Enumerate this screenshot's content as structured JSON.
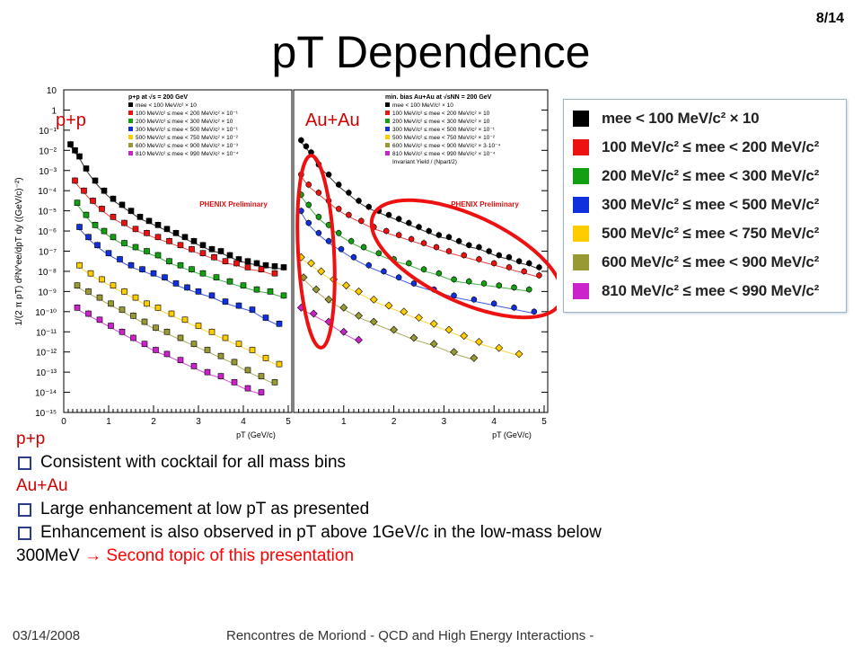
{
  "slide": {
    "number": "8/14",
    "title": "pT Dependence",
    "footer_date": "03/14/2008",
    "footer_text": "Rencontres de Moriond - QCD and High Energy Interactions -"
  },
  "panel_tags": {
    "pp": "p+p",
    "auau": "Au+Au"
  },
  "notes": {
    "pp_head": "p+p",
    "pp_bullet": "Consistent with cocktail for all mass bins",
    "auau_head": "Au+Au",
    "auau_bullet1": "Large enhancement at low pT as presented",
    "auau_bullet2": "Enhancement is also observed in pT above 1GeV/c in the low-mass below",
    "auau_bullet2_cont": "300MeV",
    "arrow": "→",
    "auau_bullet2_red": "Second topic of this presentation"
  },
  "legend": [
    {
      "label": "mee < 100 MeV/c² × 10",
      "color": "#000000"
    },
    {
      "label": "100 MeV/c² ≤ mee < 200 MeV/c²",
      "color": "#ee1111"
    },
    {
      "label": "200 MeV/c² ≤ mee < 300 MeV/c²",
      "color": "#12a012"
    },
    {
      "label": "300 MeV/c² ≤ mee < 500 MeV/c²",
      "color": "#1030dd"
    },
    {
      "label": "500 MeV/c² ≤ mee < 750 MeV/c²",
      "color": "#ffcc00"
    },
    {
      "label": "600 MeV/c² ≤ mee < 900 MeV/c²",
      "color": "#999933"
    },
    {
      "label": "810 MeV/c² ≤ mee < 990 MeV/c²",
      "color": "#cc22cc"
    }
  ],
  "chart_data": [
    {
      "type": "scatter",
      "panel": "p+p",
      "inset_title": "p+p at √s = 200 GeV",
      "watermark": "PHENIX Preliminary",
      "xlabel": "pT (GeV/c)",
      "ylabel": "1/(2 π pT) d²N^ee/dpT dy ((GeV/c)⁻²)",
      "xlim": [
        0,
        5
      ],
      "ylim": [
        1e-15,
        10
      ],
      "yscale": "log",
      "xticks": [
        0,
        1,
        2,
        3,
        4,
        5
      ],
      "yticks": [
        "10",
        "1",
        "10⁻¹",
        "10⁻²",
        "10⁻³",
        "10⁻⁴",
        "10⁻⁵",
        "10⁻⁶",
        "10⁻⁷",
        "10⁻⁸",
        "10⁻⁹",
        "10⁻¹⁰",
        "10⁻¹¹",
        "10⁻¹²",
        "10⁻¹³",
        "10⁻¹⁴",
        "10⁻¹⁵"
      ],
      "legend_entries": [
        "mee < 100 MeV/c² × 10",
        "100 MeV/c² ≤ mee < 200 MeV/c² × 10⁻¹",
        "200 MeV/c² ≤ mee < 300 MeV/c² × 10",
        "300 MeV/c² ≤ mee < 500 MeV/c² × 10⁻¹",
        "500 MeV/c² ≤ mee < 750 MeV/c² × 10⁻²",
        "600 MeV/c² ≤ mee < 900 MeV/c² × 10⁻³",
        "810 MeV/c² ≤ mee < 990 MeV/c² × 10⁻⁴"
      ],
      "series": [
        {
          "color": "#000000",
          "marker": "square",
          "x": [
            0.15,
            0.25,
            0.35,
            0.5,
            0.7,
            0.9,
            1.1,
            1.3,
            1.5,
            1.7,
            1.9,
            2.1,
            2.3,
            2.5,
            2.7,
            2.9,
            3.1,
            3.3,
            3.5,
            3.7,
            3.9,
            4.1,
            4.3,
            4.5,
            4.7,
            4.9
          ],
          "log10y": [
            -1.7,
            -2.0,
            -2.3,
            -2.9,
            -3.5,
            -4.0,
            -4.4,
            -4.7,
            -5.0,
            -5.3,
            -5.5,
            -5.7,
            -5.9,
            -6.1,
            -6.3,
            -6.5,
            -6.7,
            -6.9,
            -7.0,
            -7.2,
            -7.4,
            -7.5,
            -7.6,
            -7.7,
            -7.75,
            -7.8
          ]
        },
        {
          "color": "#ee1111",
          "marker": "square",
          "x": [
            0.25,
            0.45,
            0.65,
            0.85,
            1.1,
            1.35,
            1.6,
            1.85,
            2.1,
            2.35,
            2.6,
            2.85,
            3.1,
            3.35,
            3.6,
            3.85,
            4.1,
            4.4,
            4.7
          ],
          "log10y": [
            -3.5,
            -4.0,
            -4.5,
            -4.9,
            -5.3,
            -5.6,
            -5.9,
            -6.1,
            -6.3,
            -6.5,
            -6.7,
            -6.9,
            -7.1,
            -7.3,
            -7.5,
            -7.6,
            -7.8,
            -7.9,
            -8.1
          ]
        },
        {
          "color": "#12a012",
          "marker": "square",
          "x": [
            0.3,
            0.5,
            0.7,
            0.9,
            1.1,
            1.35,
            1.6,
            1.85,
            2.1,
            2.35,
            2.6,
            2.85,
            3.1,
            3.4,
            3.7,
            4.0,
            4.3,
            4.6,
            4.9
          ],
          "log10y": [
            -4.6,
            -5.2,
            -5.7,
            -6.0,
            -6.3,
            -6.6,
            -6.8,
            -7.0,
            -7.2,
            -7.5,
            -7.7,
            -7.9,
            -8.1,
            -8.3,
            -8.5,
            -8.7,
            -8.9,
            -9.0,
            -9.2
          ]
        },
        {
          "color": "#1030dd",
          "marker": "square",
          "x": [
            0.35,
            0.55,
            0.75,
            1.0,
            1.25,
            1.5,
            1.75,
            2.0,
            2.25,
            2.5,
            2.75,
            3.0,
            3.3,
            3.6,
            3.9,
            4.2,
            4.5,
            4.8
          ],
          "log10y": [
            -5.8,
            -6.3,
            -6.7,
            -7.1,
            -7.4,
            -7.7,
            -7.9,
            -8.1,
            -8.3,
            -8.6,
            -8.8,
            -9.0,
            -9.2,
            -9.5,
            -9.7,
            -9.9,
            -10.3,
            -10.6
          ]
        },
        {
          "color": "#ffcc00",
          "marker": "square",
          "x": [
            0.35,
            0.6,
            0.85,
            1.1,
            1.35,
            1.6,
            1.85,
            2.1,
            2.4,
            2.7,
            3.0,
            3.3,
            3.6,
            3.9,
            4.2,
            4.5,
            4.8
          ],
          "log10y": [
            -7.7,
            -8.1,
            -8.4,
            -8.7,
            -9.0,
            -9.3,
            -9.6,
            -9.8,
            -10.1,
            -10.4,
            -10.7,
            -11.0,
            -11.3,
            -11.6,
            -11.9,
            -12.3,
            -12.6
          ]
        },
        {
          "color": "#999933",
          "marker": "square",
          "x": [
            0.3,
            0.55,
            0.8,
            1.05,
            1.3,
            1.55,
            1.8,
            2.05,
            2.3,
            2.6,
            2.9,
            3.2,
            3.5,
            3.8,
            4.1,
            4.4,
            4.7
          ],
          "log10y": [
            -8.7,
            -9.0,
            -9.3,
            -9.6,
            -9.9,
            -10.2,
            -10.5,
            -10.8,
            -11.0,
            -11.3,
            -11.6,
            -11.9,
            -12.2,
            -12.5,
            -12.9,
            -13.2,
            -13.5
          ]
        },
        {
          "color": "#cc22cc",
          "marker": "square",
          "x": [
            0.3,
            0.55,
            0.8,
            1.05,
            1.3,
            1.55,
            1.8,
            2.05,
            2.3,
            2.6,
            2.9,
            3.2,
            3.5,
            3.8,
            4.1,
            4.4
          ],
          "log10y": [
            -9.8,
            -10.1,
            -10.4,
            -10.7,
            -11.0,
            -11.3,
            -11.6,
            -11.9,
            -12.1,
            -12.4,
            -12.7,
            -13.0,
            -13.2,
            -13.5,
            -13.8,
            -14.0
          ]
        }
      ]
    },
    {
      "type": "scatter",
      "panel": "Au+Au",
      "inset_title": "min. bias Au+Au at √sNN = 200 GeV",
      "watermark": "PHENIX Preliminary",
      "xlabel": "pT (GeV/c)",
      "xlim": [
        0,
        5
      ],
      "ylim": [
        1e-15,
        10
      ],
      "yscale": "log",
      "xticks": [
        1,
        2,
        3,
        4,
        5
      ],
      "legend_entries": [
        "mee < 100 MeV/c² × 10",
        "100 MeV/c² ≤ mee < 200 MeV/c² × 10",
        "200 MeV/c² ≤ mee < 300 MeV/c² × 10",
        "300 MeV/c² ≤ mee < 500 MeV/c² × 10⁻¹",
        "500 MeV/c² ≤ mee < 750 MeV/c² × 10⁻²",
        "600 MeV/c² ≤ mee < 900 MeV/c² × 3·10⁻⁴",
        "810 MeV/c² ≤ mee < 990 MeV/c² × 10⁻⁴",
        "Invariant Yield / (Npart/2)"
      ],
      "series": [
        {
          "color": "#000000",
          "marker": "circle",
          "x": [
            0.15,
            0.25,
            0.35,
            0.5,
            0.7,
            0.9,
            1.1,
            1.3,
            1.5,
            1.7,
            1.9,
            2.1,
            2.3,
            2.5,
            2.7,
            2.9,
            3.1,
            3.3,
            3.5,
            3.7,
            3.9,
            4.1,
            4.3,
            4.5,
            4.7,
            4.9
          ],
          "log10y": [
            -1.5,
            -1.8,
            -2.1,
            -2.7,
            -3.2,
            -3.7,
            -4.1,
            -4.5,
            -4.8,
            -5.0,
            -5.2,
            -5.4,
            -5.6,
            -5.8,
            -6.0,
            -6.2,
            -6.3,
            -6.5,
            -6.7,
            -6.8,
            -7.0,
            -7.2,
            -7.3,
            -7.5,
            -7.6,
            -7.8
          ]
        },
        {
          "color": "#ee1111",
          "marker": "circle",
          "x": [
            0.15,
            0.3,
            0.5,
            0.7,
            0.9,
            1.1,
            1.35,
            1.6,
            1.85,
            2.1,
            2.35,
            2.6,
            2.85,
            3.1,
            3.4,
            3.7,
            4.0,
            4.3,
            4.6,
            4.9
          ],
          "log10y": [
            -3.2,
            -3.7,
            -4.1,
            -4.5,
            -4.9,
            -5.2,
            -5.5,
            -5.8,
            -6.0,
            -6.2,
            -6.4,
            -6.6,
            -6.8,
            -7.0,
            -7.2,
            -7.4,
            -7.6,
            -7.8,
            -8.0,
            -8.2
          ]
        },
        {
          "color": "#12a012",
          "marker": "circle",
          "x": [
            0.15,
            0.3,
            0.5,
            0.7,
            0.9,
            1.15,
            1.4,
            1.7,
            2.0,
            2.3,
            2.6,
            2.9,
            3.2,
            3.5,
            3.8,
            4.1,
            4.4,
            4.7
          ],
          "log10y": [
            -4.2,
            -4.7,
            -5.3,
            -5.7,
            -6.1,
            -6.5,
            -6.8,
            -7.1,
            -7.4,
            -7.6,
            -7.9,
            -8.1,
            -8.4,
            -8.5,
            -8.6,
            -8.7,
            -8.8,
            -8.9
          ]
        },
        {
          "color": "#1030dd",
          "marker": "circle",
          "x": [
            0.15,
            0.3,
            0.5,
            0.7,
            0.95,
            1.2,
            1.5,
            1.8,
            2.1,
            2.4,
            2.8,
            3.2,
            3.6,
            4.0,
            4.4,
            4.8
          ],
          "log10y": [
            -5.0,
            -5.6,
            -6.1,
            -6.5,
            -6.9,
            -7.3,
            -7.7,
            -8.0,
            -8.3,
            -8.6,
            -8.9,
            -9.2,
            -9.4,
            -9.6,
            -9.8,
            -10.0
          ]
        },
        {
          "color": "#ffcc00",
          "marker": "diamond",
          "x": [
            0.15,
            0.35,
            0.55,
            0.8,
            1.05,
            1.3,
            1.6,
            1.9,
            2.2,
            2.5,
            2.8,
            3.1,
            3.4,
            3.7,
            4.1,
            4.5
          ],
          "log10y": [
            -7.3,
            -7.6,
            -8.0,
            -8.4,
            -8.7,
            -9.0,
            -9.4,
            -9.7,
            -10.0,
            -10.3,
            -10.6,
            -10.9,
            -11.2,
            -11.5,
            -11.8,
            -12.1
          ]
        },
        {
          "color": "#999933",
          "marker": "diamond",
          "x": [
            0.2,
            0.45,
            0.7,
            1.0,
            1.3,
            1.6,
            2.0,
            2.4,
            2.8,
            3.2,
            3.6
          ],
          "log10y": [
            -8.3,
            -8.9,
            -9.4,
            -9.8,
            -10.2,
            -10.5,
            -10.9,
            -11.3,
            -11.6,
            -12.0,
            -12.3
          ]
        },
        {
          "color": "#cc22cc",
          "marker": "diamond",
          "x": [
            0.15,
            0.4,
            0.7,
            1.0,
            1.3
          ],
          "log10y": [
            -9.8,
            -10.1,
            -10.5,
            -11.0,
            -11.4
          ]
        }
      ]
    }
  ]
}
